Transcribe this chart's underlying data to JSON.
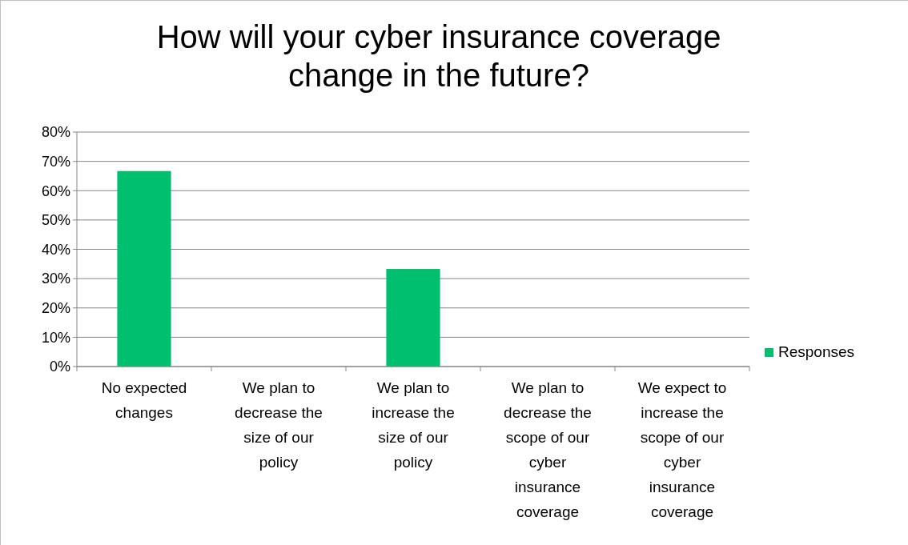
{
  "chart_data": {
    "type": "bar",
    "title": "How will your cyber insurance coverage change in the future?",
    "categories": [
      "No expected changes",
      "We plan to decrease the size of our policy",
      "We plan to increase the size of our policy",
      "We plan to decrease the scope of our cyber insurance coverage",
      "We expect to increase the scope of our cyber insurance coverage"
    ],
    "series": [
      {
        "name": "Responses",
        "color": "#00c070",
        "values": [
          66.7,
          0,
          33.3,
          0,
          0
        ]
      }
    ],
    "ylim": [
      0,
      80
    ],
    "yticks": [
      {
        "value": 0,
        "label": "0%"
      },
      {
        "value": 10,
        "label": "10%"
      },
      {
        "value": 20,
        "label": "20%"
      },
      {
        "value": 30,
        "label": "30%"
      },
      {
        "value": 40,
        "label": "40%"
      },
      {
        "value": 50,
        "label": "50%"
      },
      {
        "value": 60,
        "label": "60%"
      },
      {
        "value": 70,
        "label": "70%"
      },
      {
        "value": 80,
        "label": "80%"
      }
    ],
    "grid": "y",
    "legend": "right"
  }
}
